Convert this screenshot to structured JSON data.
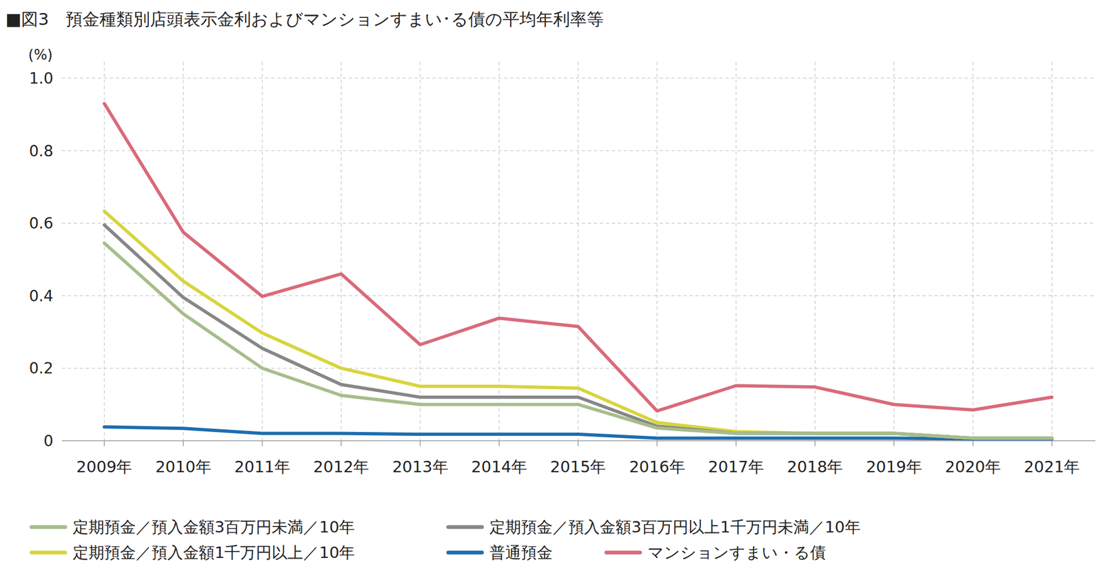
{
  "chart_data": {
    "type": "line",
    "title": "■図3　預金種類別店頭表示金利およびマンションすまい･る債の平均年利率等",
    "y_label": "(%)",
    "categories": [
      "2009年",
      "2010年",
      "2011年",
      "2012年",
      "2013年",
      "2014年",
      "2015年",
      "2016年",
      "2017年",
      "2018年",
      "2019年",
      "2020年",
      "2021年"
    ],
    "series": [
      {
        "name": "定期預金／預入金額3百万円未満／10年",
        "color": "#a7bd8b",
        "values": [
          0.545,
          0.35,
          0.2,
          0.125,
          0.1,
          0.1,
          0.1,
          0.035,
          0.02,
          0.02,
          0.02,
          0.007,
          0.007
        ]
      },
      {
        "name": "定期預金／預入金額3百万円以上1千万円未満／10年",
        "color": "#878787",
        "values": [
          0.595,
          0.395,
          0.255,
          0.155,
          0.12,
          0.12,
          0.12,
          0.04,
          0.02,
          0.02,
          0.02,
          0.007,
          0.007
        ]
      },
      {
        "name": "定期預金／預入金額1千万円以上／10年",
        "color": "#d8d43c",
        "values": [
          0.633,
          0.44,
          0.297,
          0.2,
          0.15,
          0.15,
          0.145,
          0.05,
          0.025,
          0.02,
          0.02,
          0.007,
          0.007
        ]
      },
      {
        "name": "普通預金",
        "color": "#1d6db0",
        "values": [
          0.038,
          0.034,
          0.02,
          0.02,
          0.018,
          0.018,
          0.018,
          0.007,
          0.007,
          0.007,
          0.007,
          0.005,
          0.005
        ]
      },
      {
        "name": "マンションすまい・る債",
        "color": "#d96a7a",
        "values": [
          0.93,
          0.575,
          0.398,
          0.46,
          0.265,
          0.338,
          0.315,
          0.082,
          0.152,
          0.148,
          0.1,
          0.085,
          0.12
        ]
      }
    ],
    "ylim": [
      0,
      1
    ],
    "yticks": [
      0,
      0.2,
      0.4,
      0.6,
      0.8,
      {
        "value": 1,
        "label": "1.0"
      }
    ],
    "grid": true,
    "legend": "bottom"
  }
}
